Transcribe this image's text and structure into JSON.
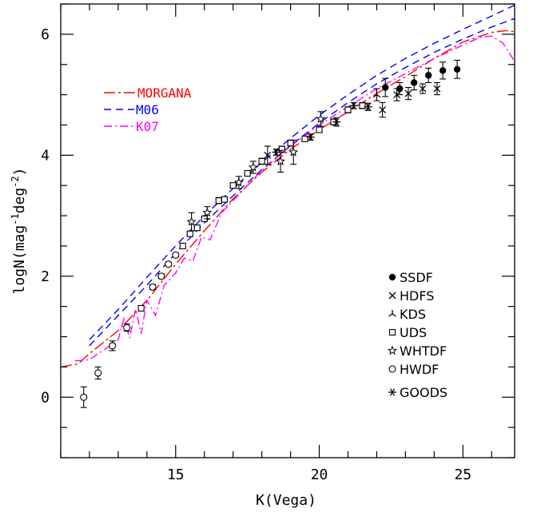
{
  "chart_data": {
    "type": "scatter",
    "xlabel": "K(Vega)",
    "ylabel": "logN(mag",
    "ylabel_exp1": "-1",
    "ylabel_mid": "deg",
    "ylabel_exp2": "-2",
    "ylabel_end": ")",
    "xlim": [
      11,
      26.8
    ],
    "ylim": [
      -1,
      6.5
    ],
    "xticks": [
      15,
      20,
      25
    ],
    "yticks": [
      0,
      2,
      4,
      6
    ],
    "model_legend": [
      {
        "name": "MORGANA",
        "color": "#ff0000",
        "dash": "long-dash"
      },
      {
        "name": "M06",
        "color": "#0000ff",
        "dash": "dash"
      },
      {
        "name": "K07",
        "color": "#ff00ff",
        "dash": "dash-dot"
      }
    ],
    "survey_legend": [
      {
        "name": "SSDF",
        "marker": "filled-circle"
      },
      {
        "name": "HDFS",
        "marker": "cross"
      },
      {
        "name": "KDS",
        "marker": "tri"
      },
      {
        "name": "UDS",
        "marker": "square"
      },
      {
        "name": "WHTDF",
        "marker": "star"
      },
      {
        "name": "HWDF",
        "marker": "open-circle"
      },
      {
        "name": "GOODS",
        "marker": "asterisk"
      }
    ],
    "models": [
      {
        "name": "MORGANA",
        "color": "#ff0000",
        "dash": "14,4,3,4",
        "x": [
          11.0,
          11.6,
          12.0,
          13.0,
          14.0,
          15.0,
          16.0,
          17.0,
          18.0,
          19.0,
          20.0,
          21.0,
          22.0,
          23.0,
          24.0,
          25.0,
          26.0,
          26.5,
          26.8
        ],
        "y": [
          0.5,
          0.55,
          0.72,
          1.1,
          1.6,
          2.2,
          2.75,
          3.28,
          3.72,
          4.1,
          4.42,
          4.72,
          5.02,
          5.3,
          5.6,
          5.87,
          6.03,
          6.06,
          6.04
        ]
      },
      {
        "name": "M06",
        "color": "#0000ff",
        "dash": "9,6",
        "x": [
          12.0,
          13.0,
          14.0,
          15.0,
          16.0,
          17.0,
          18.0,
          19.0,
          20.0,
          21.0,
          22.0,
          23.0,
          24.0,
          25.0,
          26.0,
          26.8
        ],
        "y": [
          0.95,
          1.45,
          1.98,
          2.5,
          3.0,
          3.45,
          3.88,
          4.28,
          4.66,
          5.0,
          5.32,
          5.6,
          5.85,
          6.08,
          6.3,
          6.48
        ]
      },
      {
        "name": "M06",
        "color": "#0000ff",
        "dash": "9,6",
        "x": [
          12.0,
          13.0,
          14.0,
          15.0,
          16.0,
          17.0,
          18.0,
          19.0,
          20.0,
          21.0,
          22.0,
          23.0,
          24.0,
          25.0,
          26.0,
          26.8
        ],
        "y": [
          0.85,
          1.35,
          1.85,
          2.38,
          2.88,
          3.33,
          3.76,
          4.16,
          4.53,
          4.87,
          5.18,
          5.45,
          5.7,
          5.92,
          6.12,
          6.26
        ]
      },
      {
        "name": "K07",
        "color": "#ff00ff",
        "dash": "10,4,2,4",
        "x": [
          11.5,
          12.0,
          12.5,
          13.0,
          13.2,
          13.4,
          13.6,
          13.8,
          14.0,
          14.3,
          14.6,
          15.0,
          15.3,
          15.6,
          15.9,
          16.2,
          16.6,
          17.0,
          18.0,
          19.0,
          20.0,
          21.0,
          22.0,
          23.0,
          24.0,
          25.0,
          25.6,
          26.0,
          26.4,
          26.8
        ],
        "y": [
          0.6,
          0.62,
          0.78,
          0.95,
          1.3,
          0.98,
          1.45,
          1.05,
          1.6,
          1.35,
          1.85,
          2.05,
          2.3,
          2.25,
          2.65,
          2.6,
          3.05,
          3.25,
          3.75,
          4.15,
          4.5,
          4.8,
          5.1,
          5.35,
          5.6,
          5.82,
          5.95,
          5.97,
          5.85,
          5.55
        ]
      }
    ],
    "survey_points": [
      {
        "survey": "HWDF",
        "marker": "open-circle",
        "x": 11.8,
        "y": 0.0,
        "err": 0.17
      },
      {
        "survey": "HWDF",
        "marker": "open-circle",
        "x": 12.3,
        "y": 0.4,
        "err": 0.1
      },
      {
        "survey": "HWDF",
        "marker": "open-circle",
        "x": 12.8,
        "y": 0.85,
        "err": 0.08
      },
      {
        "survey": "HWDF",
        "marker": "open-circle",
        "x": 13.3,
        "y": 1.15,
        "err": 0.06
      },
      {
        "survey": "UDS",
        "marker": "square",
        "x": 13.8,
        "y": 1.47,
        "err": 0.04
      },
      {
        "survey": "HWDF",
        "marker": "open-circle",
        "x": 14.2,
        "y": 1.82,
        "err": 0.04
      },
      {
        "survey": "HWDF",
        "marker": "open-circle",
        "x": 14.5,
        "y": 2.0,
        "err": 0.04
      },
      {
        "survey": "HWDF",
        "marker": "open-circle",
        "x": 14.75,
        "y": 2.2,
        "err": 0.03
      },
      {
        "survey": "HWDF",
        "marker": "open-circle",
        "x": 15.0,
        "y": 2.35,
        "err": 0.03
      },
      {
        "survey": "UDS",
        "marker": "square",
        "x": 15.25,
        "y": 2.5,
        "err": 0.03
      },
      {
        "survey": "UDS",
        "marker": "square",
        "x": 15.5,
        "y": 2.7,
        "err": 0.03
      },
      {
        "survey": "WHTDF",
        "marker": "star",
        "x": 15.55,
        "y": 2.9,
        "err": 0.15
      },
      {
        "survey": "UDS",
        "marker": "square",
        "x": 15.75,
        "y": 2.8,
        "err": 0.03
      },
      {
        "survey": "UDS",
        "marker": "square",
        "x": 16.0,
        "y": 2.95,
        "err": 0.03
      },
      {
        "survey": "WHTDF",
        "marker": "star",
        "x": 16.1,
        "y": 3.05,
        "err": 0.1
      },
      {
        "survey": "UDS",
        "marker": "square",
        "x": 16.5,
        "y": 3.25,
        "err": 0.05
      },
      {
        "survey": "UDS",
        "marker": "square",
        "x": 16.7,
        "y": 3.27,
        "err": 0.03
      },
      {
        "survey": "UDS",
        "marker": "square",
        "x": 17.0,
        "y": 3.5,
        "err": 0.03
      },
      {
        "survey": "WHTDF",
        "marker": "star",
        "x": 17.2,
        "y": 3.55,
        "err": 0.1
      },
      {
        "survey": "UDS",
        "marker": "square",
        "x": 17.5,
        "y": 3.7,
        "err": 0.03
      },
      {
        "survey": "WHTDF",
        "marker": "star",
        "x": 17.7,
        "y": 3.8,
        "err": 0.1
      },
      {
        "survey": "UDS",
        "marker": "square",
        "x": 18.0,
        "y": 3.9,
        "err": 0.05
      },
      {
        "survey": "HDFS",
        "marker": "cross",
        "x": 18.2,
        "y": 4.0,
        "err": 0.15
      },
      {
        "survey": "GOODS",
        "marker": "asterisk",
        "x": 18.5,
        "y": 4.05,
        "err": 0.05
      },
      {
        "survey": "UDS",
        "marker": "square",
        "x": 18.7,
        "y": 4.1,
        "err": 0.05
      },
      {
        "survey": "WHTDF",
        "marker": "star",
        "x": 18.65,
        "y": 3.9,
        "err": 0.18
      },
      {
        "survey": "UDS",
        "marker": "square",
        "x": 19.0,
        "y": 4.2,
        "err": 0.05
      },
      {
        "survey": "WHTDF",
        "marker": "star",
        "x": 19.1,
        "y": 4.05,
        "err": 0.2
      },
      {
        "survey": "UDS",
        "marker": "square",
        "x": 19.5,
        "y": 4.27,
        "err": 0.03
      },
      {
        "survey": "GOODS",
        "marker": "asterisk",
        "x": 19.7,
        "y": 4.3,
        "err": 0.05
      },
      {
        "survey": "UDS",
        "marker": "square",
        "x": 20.0,
        "y": 4.42,
        "err": 0.04
      },
      {
        "survey": "WHTDF",
        "marker": "star",
        "x": 20.05,
        "y": 4.6,
        "err": 0.12
      },
      {
        "survey": "UDS",
        "marker": "square",
        "x": 20.5,
        "y": 4.55,
        "err": 0.05
      },
      {
        "survey": "GOODS",
        "marker": "asterisk",
        "x": 20.6,
        "y": 4.55,
        "err": 0.07
      },
      {
        "survey": "UDS",
        "marker": "square",
        "x": 21.0,
        "y": 4.75,
        "err": 0.05
      },
      {
        "survey": "GOODS",
        "marker": "asterisk",
        "x": 21.2,
        "y": 4.82,
        "err": 0.05
      },
      {
        "survey": "UDS",
        "marker": "square",
        "x": 21.5,
        "y": 4.82,
        "err": 0.05
      },
      {
        "survey": "GOODS",
        "marker": "asterisk",
        "x": 21.7,
        "y": 4.8,
        "err": 0.06
      },
      {
        "survey": "KDS",
        "marker": "tri",
        "x": 22.0,
        "y": 5.0,
        "err": 0.1
      },
      {
        "survey": "HDFS",
        "marker": "cross",
        "x": 22.2,
        "y": 4.75,
        "err": 0.12
      },
      {
        "survey": "SSDF",
        "marker": "filled-circle",
        "x": 22.3,
        "y": 5.12,
        "err": 0.15
      },
      {
        "survey": "HDFS",
        "marker": "cross",
        "x": 22.7,
        "y": 5.0,
        "err": 0.1
      },
      {
        "survey": "SSDF",
        "marker": "filled-circle",
        "x": 22.8,
        "y": 5.1,
        "err": 0.1
      },
      {
        "survey": "HDFS",
        "marker": "cross",
        "x": 23.1,
        "y": 5.02,
        "err": 0.1
      },
      {
        "survey": "SSDF",
        "marker": "filled-circle",
        "x": 23.3,
        "y": 5.2,
        "err": 0.12
      },
      {
        "survey": "HDFS",
        "marker": "cross",
        "x": 23.6,
        "y": 5.1,
        "err": 0.08
      },
      {
        "survey": "SSDF",
        "marker": "filled-circle",
        "x": 23.8,
        "y": 5.32,
        "err": 0.12
      },
      {
        "survey": "HDFS",
        "marker": "cross",
        "x": 24.1,
        "y": 5.1,
        "err": 0.1
      },
      {
        "survey": "SSDF",
        "marker": "filled-circle",
        "x": 24.3,
        "y": 5.4,
        "err": 0.14
      },
      {
        "survey": "SSDF",
        "marker": "filled-circle",
        "x": 24.8,
        "y": 5.42,
        "err": 0.15
      }
    ]
  }
}
